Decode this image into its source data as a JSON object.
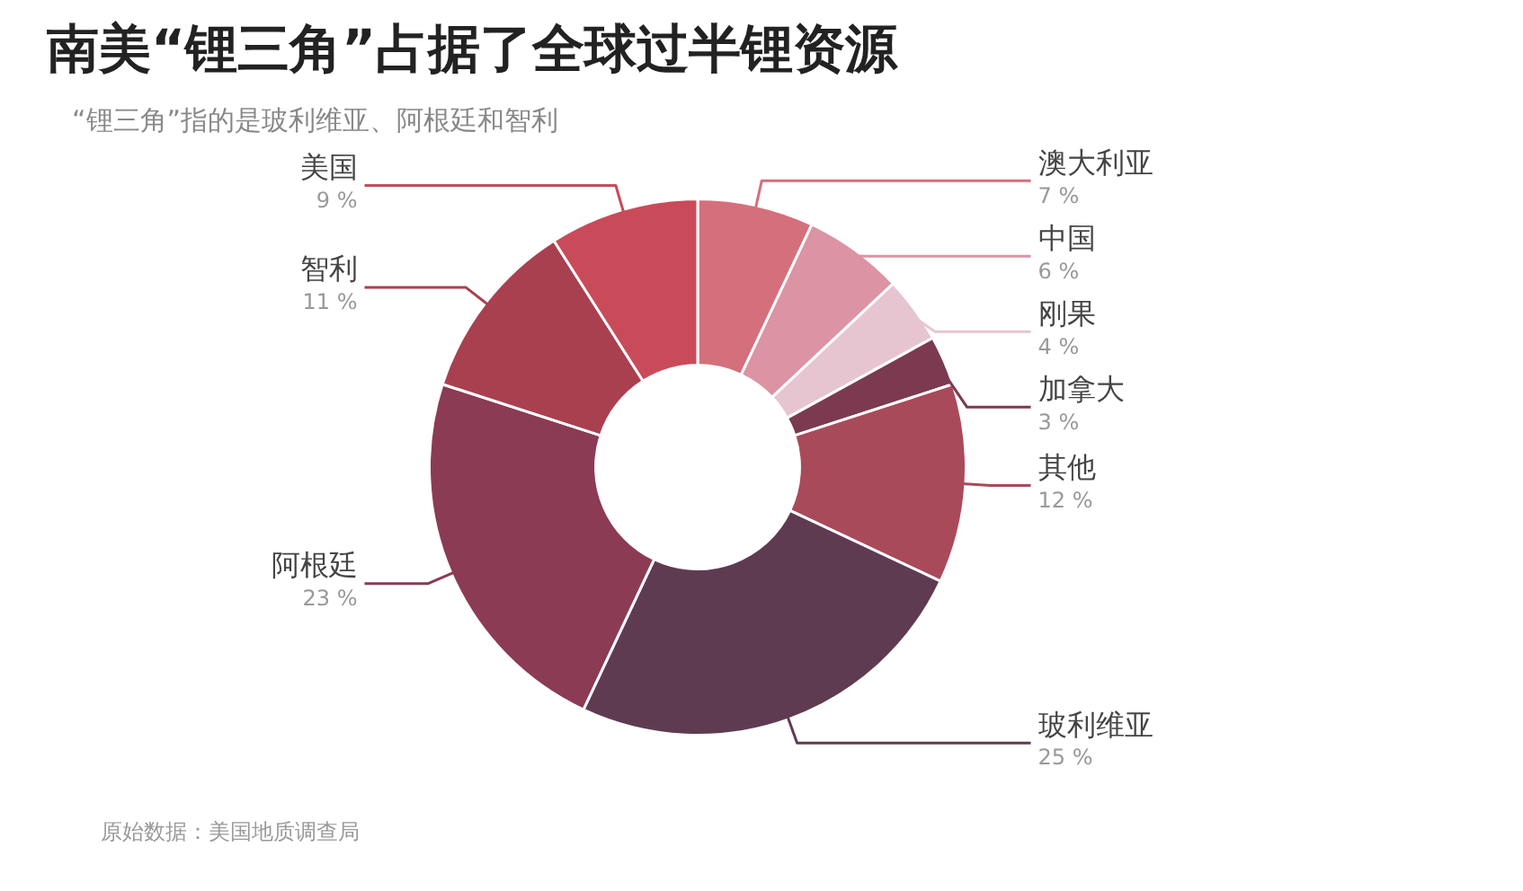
{
  "chart_data": {
    "type": "donut",
    "title": "南美“锂三角”占据了全球过半锂资源",
    "subtitle": "“锂三角”指的是玻利维亚、阿根廷和智利",
    "categories": [
      "澳大利亚",
      "中国",
      "刚果",
      "加拿大",
      "其他",
      "玻利维亚",
      "阿根廷",
      "智利",
      "美国"
    ],
    "values": [
      7,
      6,
      4,
      3,
      12,
      25,
      23,
      11,
      9
    ],
    "value_labels": [
      "7 %",
      "6 %",
      "4 %",
      "3 %",
      "12 %",
      "25 %",
      "23 %",
      "11 %",
      "9 %"
    ],
    "colors": [
      "#d4707c",
      "#dc93a3",
      "#e6c5d1",
      "#7b3a4f",
      "#a94a5a",
      "#5f3b52",
      "#8b3b54",
      "#a9404f",
      "#c94b5a"
    ],
    "legend": false,
    "annotations": [
      "原始数据：美国地质调查局"
    ]
  }
}
